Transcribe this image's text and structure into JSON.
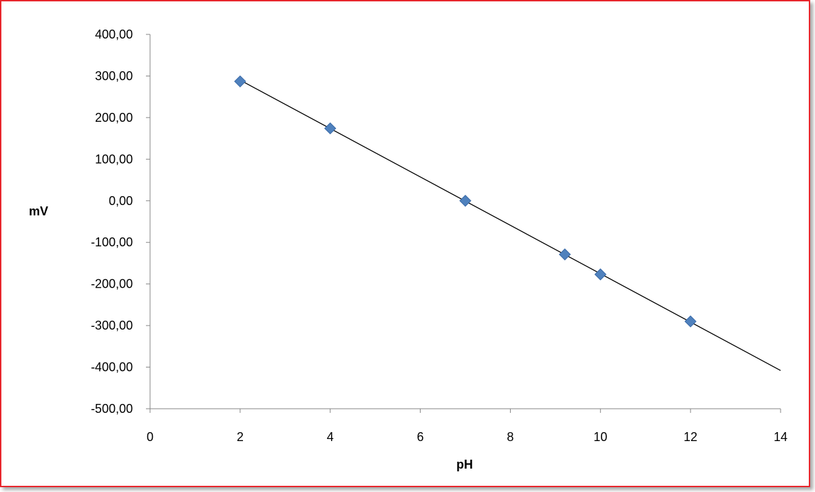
{
  "chart_data": {
    "type": "scatter",
    "title": "",
    "xlabel": "pH",
    "ylabel": "mV",
    "xlim": [
      0,
      14
    ],
    "ylim": [
      -500,
      400
    ],
    "x_ticks": [
      0,
      2,
      4,
      6,
      8,
      10,
      12,
      14
    ],
    "x_tick_labels": [
      "0",
      "2",
      "4",
      "6",
      "8",
      "10",
      "12",
      "14"
    ],
    "y_ticks": [
      400,
      300,
      200,
      100,
      0,
      -100,
      -200,
      -300,
      -400,
      -500
    ],
    "y_tick_labels": [
      "400,00",
      "300,00",
      "200,00",
      "100,00",
      "0,00",
      "-100,00",
      "-200,00",
      "-300,00",
      "-400,00",
      "-500,00"
    ],
    "grid": false,
    "legend": "none",
    "series": [
      {
        "marker": "diamond",
        "color": "#4f81bd",
        "points": [
          {
            "x": 2,
            "y": 287
          },
          {
            "x": 4,
            "y": 174
          },
          {
            "x": 7,
            "y": 0
          },
          {
            "x": 9.21,
            "y": -129
          },
          {
            "x": 10,
            "y": -177
          },
          {
            "x": 12,
            "y": -290
          }
        ]
      }
    ],
    "trendline": {
      "type": "linear",
      "color": "#000000",
      "from": {
        "x": 2,
        "y": 290
      },
      "to": {
        "x": 14,
        "y": -408
      }
    }
  }
}
